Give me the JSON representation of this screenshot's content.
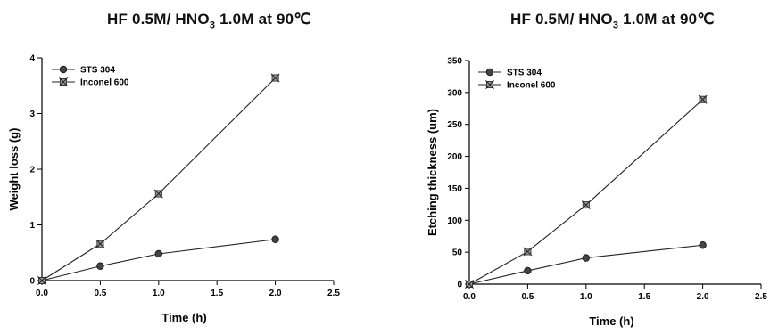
{
  "chart_data": [
    {
      "type": "line",
      "title": "HF 0.5M/ HNO3 1.0M at 90℃",
      "title_parts": {
        "before_sub": "HF 0.5M/ HNO",
        "sub": "3",
        "after_sub": " 1.0M at 90℃"
      },
      "xlabel": "Time (h)",
      "ylabel": "Weight loss (g)",
      "xlim": [
        0.0,
        2.5
      ],
      "ylim": [
        0,
        4
      ],
      "xticks": [
        "0.0",
        "0.5",
        "1.0",
        "1.5",
        "2.0",
        "2.5"
      ],
      "yticks": [
        "0",
        "1",
        "2",
        "3",
        "4"
      ],
      "legend_position": "top-left",
      "grid": false,
      "series": [
        {
          "name": "STS 304",
          "marker": "circle",
          "color": "#333333",
          "x": [
            0.0,
            0.5,
            1.0,
            2.0
          ],
          "values": [
            0.0,
            0.26,
            0.48,
            0.74
          ]
        },
        {
          "name": "Inconel 600",
          "marker": "star",
          "color": "#333333",
          "x": [
            0.0,
            0.5,
            1.0,
            2.0
          ],
          "values": [
            0.0,
            0.66,
            1.56,
            3.64
          ]
        }
      ]
    },
    {
      "type": "line",
      "title": "HF 0.5M/ HNO3 1.0M at 90℃",
      "title_parts": {
        "before_sub": "HF 0.5M/ HNO",
        "sub": "3",
        "after_sub": " 1.0M at 90℃"
      },
      "xlabel": "Time (h)",
      "ylabel": "Etching thickness (um)",
      "xlim": [
        0.0,
        2.5
      ],
      "ylim": [
        0,
        350
      ],
      "xticks": [
        "0.0",
        "0.5",
        "1.0",
        "1.5",
        "2.0",
        "2.5"
      ],
      "yticks": [
        "0",
        "50",
        "100",
        "150",
        "200",
        "250",
        "300",
        "350"
      ],
      "legend_position": "top-left",
      "grid": false,
      "series": [
        {
          "name": "STS 304",
          "marker": "circle",
          "color": "#333333",
          "x": [
            0.0,
            0.5,
            1.0,
            2.0
          ],
          "values": [
            0,
            21,
            41,
            61
          ]
        },
        {
          "name": "Inconel 600",
          "marker": "star",
          "color": "#333333",
          "x": [
            0.0,
            0.5,
            1.0,
            2.0
          ],
          "values": [
            0,
            51,
            124,
            289
          ]
        }
      ]
    }
  ]
}
